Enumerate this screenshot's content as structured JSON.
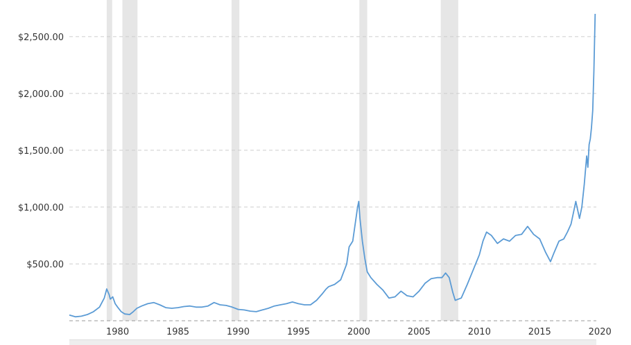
{
  "chart_data": {
    "type": "line",
    "title": "",
    "xlabel": "",
    "ylabel": "",
    "xlim": [
      1976.0,
      2019.7
    ],
    "ylim": [
      0,
      2700
    ],
    "grid": true,
    "legend": "none",
    "colors": {
      "line": "#5b9bd5",
      "recession": "#e6e6e6",
      "grid": "#cccccc",
      "text": "#333333"
    },
    "y_ticks": [
      {
        "value": 500,
        "label": "$500.00"
      },
      {
        "value": 1000,
        "label": "$1,000.00"
      },
      {
        "value": 1500,
        "label": "$1,500.00"
      },
      {
        "value": 2000,
        "label": "$2,000.00"
      },
      {
        "value": 2500,
        "label": "$2,500.00"
      }
    ],
    "x_ticks": [
      {
        "value": 1980,
        "label": "1980"
      },
      {
        "value": 1985,
        "label": "1985"
      },
      {
        "value": 1990,
        "label": "1990"
      },
      {
        "value": 1995,
        "label": "1995"
      },
      {
        "value": 2000,
        "label": "2000"
      },
      {
        "value": 2005,
        "label": "2005"
      },
      {
        "value": 2010,
        "label": "2010"
      },
      {
        "value": 2015,
        "label": "2015"
      },
      {
        "value": 2020,
        "label": "2020"
      }
    ],
    "recessions": [
      [
        1979.1,
        1979.55
      ],
      [
        1980.4,
        1981.65
      ],
      [
        1989.45,
        1990.1
      ],
      [
        2000.05,
        2000.7
      ],
      [
        2006.8,
        2008.25
      ]
    ],
    "series": [
      {
        "x": [
          1976.0,
          1976.5,
          1977.0,
          1977.5,
          1978.0,
          1978.5,
          1978.9,
          1979.1,
          1979.3,
          1979.4,
          1979.6,
          1979.8,
          1980.0,
          1980.3,
          1980.6,
          1981.0,
          1981.3,
          1981.6,
          1982.0,
          1982.5,
          1983.0,
          1983.5,
          1984.0,
          1984.5,
          1985.0,
          1985.5,
          1986.0,
          1986.5,
          1987.0,
          1987.5,
          1988.0,
          1988.5,
          1989.0,
          1989.5,
          1990.0,
          1990.5,
          1991.0,
          1991.5,
          1992.0,
          1992.5,
          1993.0,
          1993.5,
          1994.0,
          1994.5,
          1995.0,
          1995.5,
          1996.0,
          1996.5,
          1997.0,
          1997.3,
          1997.5,
          1998.0,
          1998.5,
          1999.0,
          1999.2,
          1999.5,
          1999.7,
          1999.9,
          2000.0,
          2000.1,
          2000.3,
          2000.5,
          2000.7,
          2001.0,
          2001.5,
          2002.0,
          2002.5,
          2003.0,
          2003.5,
          2004.0,
          2004.5,
          2005.0,
          2005.5,
          2006.0,
          2006.5,
          2006.9,
          2007.2,
          2007.5,
          2007.8,
          2008.0,
          2008.5,
          2009.0,
          2009.5,
          2010.0,
          2010.3,
          2010.6,
          2011.0,
          2011.5,
          2012.0,
          2012.5,
          2013.0,
          2013.5,
          2014.0,
          2014.5,
          2015.0,
          2015.5,
          2015.9,
          2016.2,
          2016.6,
          2017.0,
          2017.3,
          2017.6,
          2017.9,
          2018.0,
          2018.3,
          2018.5,
          2018.7,
          2018.9,
          2019.0,
          2019.1,
          2019.2,
          2019.3,
          2019.4,
          2019.5,
          2019.6
        ],
        "values": [
          50,
          35,
          40,
          55,
          80,
          120,
          200,
          280,
          230,
          190,
          210,
          150,
          120,
          80,
          60,
          55,
          80,
          110,
          130,
          150,
          160,
          140,
          115,
          110,
          115,
          125,
          130,
          120,
          120,
          130,
          160,
          140,
          135,
          120,
          100,
          95,
          85,
          80,
          95,
          110,
          130,
          140,
          150,
          165,
          150,
          140,
          140,
          180,
          240,
          280,
          300,
          320,
          360,
          500,
          650,
          700,
          850,
          1000,
          1050,
          900,
          700,
          550,
          430,
          380,
          320,
          270,
          200,
          210,
          260,
          220,
          210,
          260,
          330,
          370,
          380,
          380,
          420,
          380,
          250,
          180,
          200,
          320,
          450,
          580,
          700,
          780,
          750,
          680,
          720,
          700,
          750,
          760,
          830,
          760,
          720,
          600,
          520,
          600,
          700,
          720,
          780,
          850,
          1000,
          1050,
          900,
          1000,
          1200,
          1450,
          1350,
          1550,
          1600,
          1700,
          1850,
          2200,
          2700
        ]
      }
    ]
  }
}
